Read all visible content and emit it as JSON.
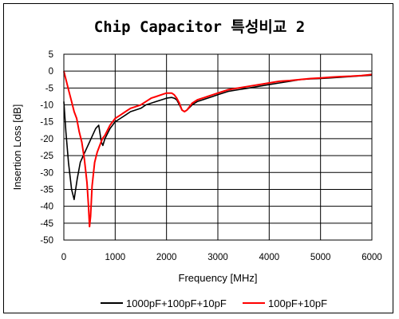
{
  "chart_data": {
    "type": "line",
    "title": "Chip Capacitor 특성비교 2",
    "xlabel": "Frequency [MHz]",
    "ylabel": "Insertion Loss [dB]",
    "xlim": [
      0,
      6000
    ],
    "ylim": [
      -50,
      5
    ],
    "x_ticks": [
      0,
      1000,
      2000,
      3000,
      4000,
      5000,
      6000
    ],
    "y_ticks": [
      5,
      0,
      -5,
      -10,
      -15,
      -20,
      -25,
      -30,
      -35,
      -40,
      -45,
      -50
    ],
    "grid": true,
    "legend_position": "bottom",
    "series": [
      {
        "name": "1000pF+100pF+10pF",
        "color": "#000000",
        "x": [
          0,
          40,
          90,
          150,
          200,
          260,
          320,
          380,
          440,
          500,
          560,
          620,
          680,
          730,
          760,
          800,
          900,
          1000,
          1100,
          1200,
          1300,
          1400,
          1500,
          1600,
          1700,
          1800,
          1900,
          2000,
          2100,
          2150,
          2200,
          2250,
          2300,
          2350,
          2400,
          2500,
          2600,
          2700,
          2800,
          2900,
          3000,
          3200,
          3400,
          3600,
          3800,
          4000,
          4200,
          4400,
          4600,
          4800,
          5000,
          5200,
          5400,
          5600,
          5800,
          6000
        ],
        "values": [
          -9,
          -18,
          -27,
          -35,
          -38,
          -32,
          -27,
          -25,
          -23,
          -21,
          -19,
          -17,
          -16,
          -21,
          -22,
          -20,
          -17,
          -15,
          -14,
          -13,
          -12,
          -11.5,
          -11,
          -10,
          -9.5,
          -9,
          -8.5,
          -8,
          -7.8,
          -8,
          -8.5,
          -10,
          -11.5,
          -12,
          -11.5,
          -10,
          -9,
          -8.5,
          -8,
          -7.5,
          -7,
          -6,
          -5.5,
          -5,
          -4.5,
          -4,
          -3.5,
          -3,
          -2.5,
          -2.3,
          -2.2,
          -2,
          -1.8,
          -1.6,
          -1.4,
          -1.2
        ]
      },
      {
        "name": "100pF+10pF",
        "color": "#ff0000",
        "x": [
          0,
          50,
          100,
          150,
          200,
          250,
          300,
          350,
          400,
          450,
          480,
          500,
          520,
          550,
          600,
          650,
          700,
          750,
          800,
          900,
          1000,
          1100,
          1200,
          1300,
          1400,
          1500,
          1600,
          1700,
          1800,
          1900,
          2000,
          2050,
          2100,
          2150,
          2200,
          2250,
          2300,
          2350,
          2400,
          2500,
          2600,
          2700,
          2800,
          2900,
          3000,
          3200,
          3400,
          3600,
          3800,
          4000,
          4200,
          4400,
          4600,
          4800,
          5000,
          5200,
          5400,
          5600,
          5800,
          6000
        ],
        "values": [
          0,
          -3,
          -6,
          -9,
          -12,
          -14,
          -18,
          -21,
          -26,
          -33,
          -40,
          -46,
          -43,
          -34,
          -27,
          -24,
          -22,
          -20,
          -19,
          -16,
          -14,
          -13,
          -12,
          -11,
          -10.5,
          -10,
          -9,
          -8,
          -7.5,
          -7,
          -6.5,
          -6.5,
          -6.5,
          -7,
          -8,
          -9.5,
          -11.5,
          -12,
          -11.5,
          -9.5,
          -8.5,
          -8,
          -7.5,
          -7,
          -6.5,
          -5.5,
          -5,
          -4.5,
          -4,
          -3.5,
          -3,
          -2.8,
          -2.5,
          -2.2,
          -2,
          -1.8,
          -1.6,
          -1.5,
          -1.3,
          -1
        ]
      }
    ]
  }
}
